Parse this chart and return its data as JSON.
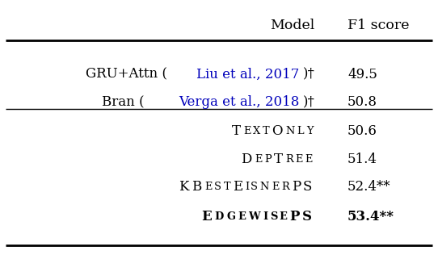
{
  "header": [
    "Model",
    "F1 score"
  ],
  "baseline_rows": [
    {
      "prefix": "GRU+Attn (",
      "citation": "Liu et al., 2017",
      "suffix": ")†",
      "score": "49.5",
      "score_bold": false
    },
    {
      "prefix": "Bran (",
      "citation": "Verga et al., 2018",
      "suffix": ")†",
      "score": "50.8",
      "score_bold": false
    }
  ],
  "our_rows": [
    {
      "model": "TextOnly",
      "score": "50.6",
      "score_bold": false
    },
    {
      "model": "DepTree",
      "score": "51.4",
      "score_bold": false
    },
    {
      "model": "KBestEisnerPS",
      "score": "52.4**",
      "score_bold": false
    },
    {
      "model": "EdgewisePS",
      "score": "53.4**",
      "score_bold": true
    }
  ],
  "citation_color": "#0000BB",
  "text_color": "#000000",
  "bg_color": "#ffffff",
  "fig_width": 5.42,
  "fig_height": 3.16,
  "dpi": 100
}
